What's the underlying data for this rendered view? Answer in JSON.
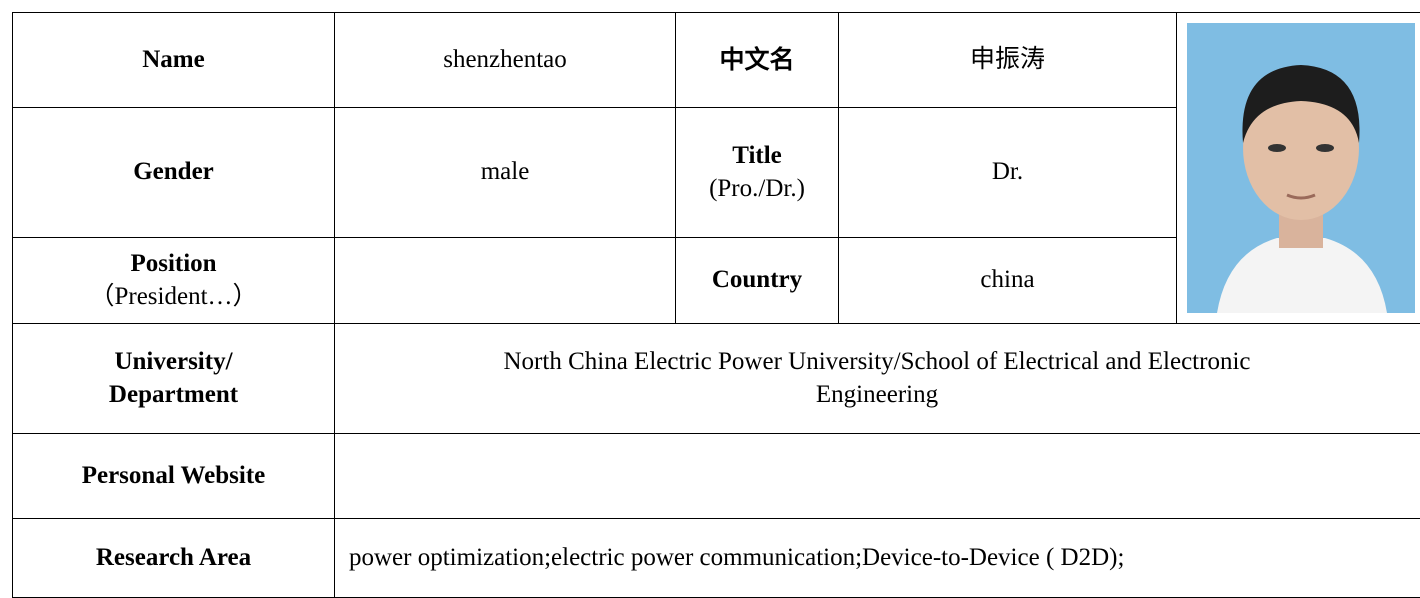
{
  "table": {
    "name": {
      "label": "Name",
      "value": "shenzhentao"
    },
    "chinese_name": {
      "label": "中文名",
      "value": "申振涛"
    },
    "gender": {
      "label": "Gender",
      "value": "male"
    },
    "title": {
      "label": "Title",
      "hint": "(Pro./Dr.)",
      "value": "Dr."
    },
    "position": {
      "label": "Position",
      "hint": "（President…）"
    },
    "country": {
      "label": "Country",
      "value": "china"
    },
    "university": {
      "label": [
        "University/",
        "Department"
      ],
      "value": [
        "North China Electric Power University/School of Electrical and Electronic",
        "Engineering"
      ]
    },
    "website": {
      "label": "Personal Website"
    },
    "research": {
      "label": "Research Area",
      "value": "power optimization;electric power communication;Device-to-Device ( D2D);"
    }
  }
}
